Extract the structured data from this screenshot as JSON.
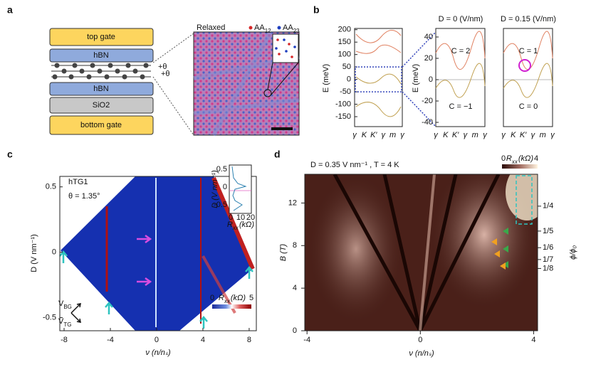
{
  "a": {
    "label": "a",
    "layers": [
      "top gate",
      "hBN",
      "hBN",
      "SiO2",
      "bottom gate"
    ],
    "twist": [
      "+θ",
      "+θ"
    ],
    "image_title": "Relaxed",
    "stackings": [
      {
        "name": "AA",
        "sub": "12",
        "color": "#d62728"
      },
      {
        "name": "AA",
        "sub": "23",
        "color": "#1f3fbf"
      }
    ]
  },
  "b": {
    "label": "b",
    "kpath": [
      "γ",
      "K",
      "K′",
      "γ",
      "m",
      "γ"
    ],
    "full_band": {
      "ylabel": "E (meV)",
      "yticks": [
        -150,
        -100,
        -50,
        0,
        50,
        100,
        150,
        200
      ],
      "ylim": [
        -190,
        205
      ]
    },
    "zoom": [
      {
        "title": "D = 0 (V/nm)",
        "ylabel": "E (meV)",
        "yticks": [
          -40,
          -20,
          0,
          20,
          40
        ],
        "ylim": [
          -44,
          48
        ],
        "chern": [
          "C = 2",
          "C = −1"
        ]
      },
      {
        "title": "D = 0.15 (V/nm)",
        "chern": [
          "C = 1",
          "C = 0"
        ]
      }
    ]
  },
  "c": {
    "label": "c",
    "sample": "hTG1",
    "angle": "θ = 1.35°",
    "ylabel": "D (V nm⁻¹)",
    "xlabel": "ν (n/nₛ)",
    "xticks": [
      -8,
      -4,
      0,
      4,
      8
    ],
    "xlim": [
      -8.37,
      8.62
    ],
    "yticks": [
      -0.5,
      0,
      0.5
    ],
    "ylim": [
      -0.6,
      0.58
    ],
    "gates": [
      {
        "name": "V",
        "sub": "BG"
      },
      {
        "name": "V",
        "sub": "TG"
      }
    ],
    "colorbar": {
      "min": 0,
      "max": 5,
      "label": {
        "name": "R",
        "sub": "xx",
        "unit": "(kΩ)"
      }
    },
    "inset": {
      "ylabel": "D (V nm⁻¹)",
      "yticks": [
        -0.5,
        0,
        0.5
      ],
      "xticks": [
        0,
        10,
        20
      ],
      "xlabel": {
        "name": "R",
        "sub": "xx",
        "unit": "(kΩ)"
      }
    }
  },
  "d": {
    "label": "d",
    "conditions": "D = 0.35 V nm⁻¹ , T = 4 K",
    "ylabel": "B (T)",
    "xlabel": "ν (n/nₛ)",
    "xticks": [
      -4,
      0,
      4
    ],
    "xlim": [
      -4.08,
      4.14
    ],
    "yticks": [
      0,
      4,
      8,
      12
    ],
    "ylim": [
      0,
      14.7
    ],
    "y2label": "ϕ/ϕ₀",
    "y2lim": [
      0,
      0.314
    ],
    "y2ticks": [
      {
        "value": 0.25,
        "label": "1/4"
      },
      {
        "value": 0.2,
        "label": "1/5"
      },
      {
        "value": 0.1667,
        "label": "1/6"
      },
      {
        "value": 0.1429,
        "label": "1/7"
      },
      {
        "value": 0.125,
        "label": "1/8"
      }
    ],
    "colorbar": {
      "min": 0,
      "max": 4,
      "label": {
        "name": "R",
        "sub": "xx",
        "unit": "(kΩ)"
      }
    }
  }
}
